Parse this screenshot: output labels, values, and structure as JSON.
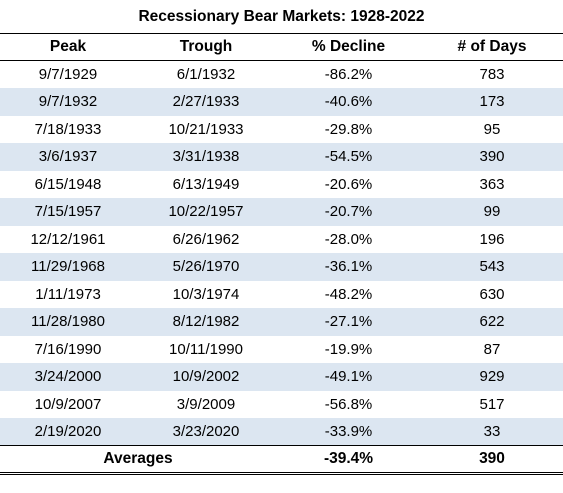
{
  "chart_data": {
    "type": "table",
    "title": "Recessionary Bear Markets: 1928-2022",
    "columns": [
      "Peak",
      "Trough",
      "% Decline",
      "# of Days"
    ],
    "rows": [
      [
        "9/7/1929",
        "6/1/1932",
        "-86.2%",
        "783"
      ],
      [
        "9/7/1932",
        "2/27/1933",
        "-40.6%",
        "173"
      ],
      [
        "7/18/1933",
        "10/21/1933",
        "-29.8%",
        "95"
      ],
      [
        "3/6/1937",
        "3/31/1938",
        "-54.5%",
        "390"
      ],
      [
        "6/15/1948",
        "6/13/1949",
        "-20.6%",
        "363"
      ],
      [
        "7/15/1957",
        "10/22/1957",
        "-20.7%",
        "99"
      ],
      [
        "12/12/1961",
        "6/26/1962",
        "-28.0%",
        "196"
      ],
      [
        "11/29/1968",
        "5/26/1970",
        "-36.1%",
        "543"
      ],
      [
        "1/11/1973",
        "10/3/1974",
        "-48.2%",
        "630"
      ],
      [
        "11/28/1980",
        "8/12/1982",
        "-27.1%",
        "622"
      ],
      [
        "7/16/1990",
        "10/11/1990",
        "-19.9%",
        "87"
      ],
      [
        "3/24/2000",
        "10/9/2002",
        "-49.1%",
        "929"
      ],
      [
        "10/9/2007",
        "3/9/2009",
        "-56.8%",
        "517"
      ],
      [
        "2/19/2020",
        "3/23/2020",
        "-33.9%",
        "33"
      ]
    ],
    "footer": {
      "label": "Averages",
      "decline": "-39.4%",
      "days": "390"
    },
    "colors": {
      "shaded_row": "#dce6f1",
      "rule": "#000000"
    }
  }
}
